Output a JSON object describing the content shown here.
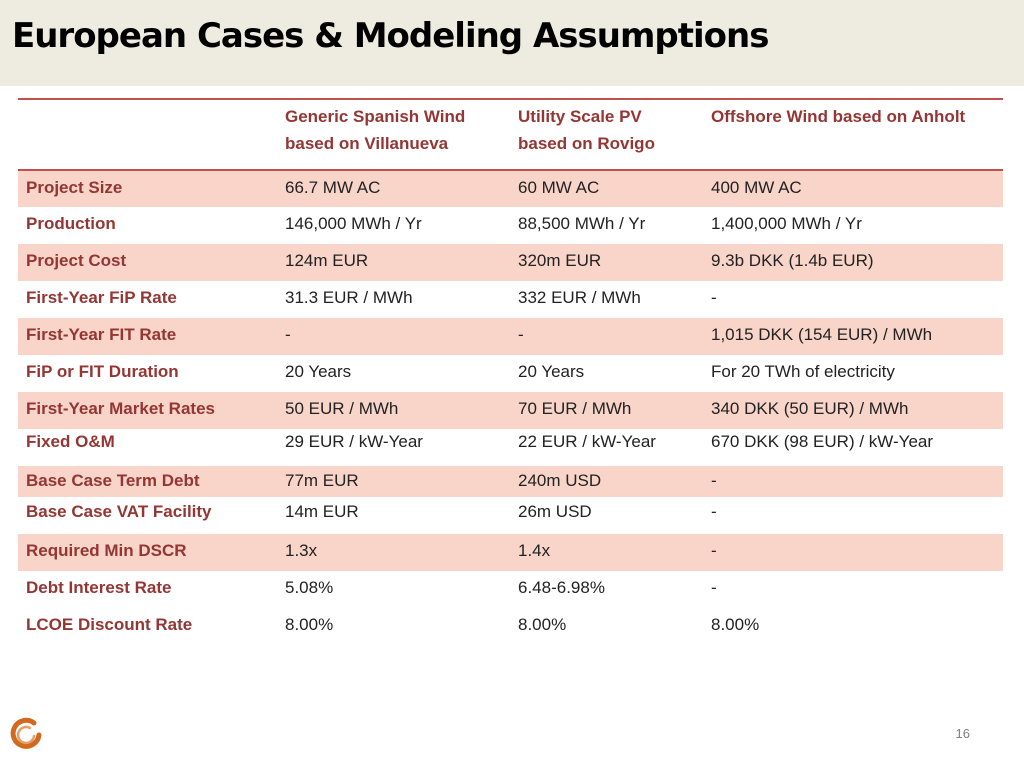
{
  "slide": {
    "title": "European Cases & Modeling Assumptions",
    "page_number": "16"
  },
  "table": {
    "headers": [
      "",
      "Generic Spanish Wind based on Villanueva",
      "Utility Scale PV based on Rovigo",
      "Offshore Wind based on Anholt"
    ],
    "rows": [
      {
        "label": "Project Size",
        "cells": [
          "66.7  MW AC",
          "60 MW AC",
          "400 MW AC"
        ]
      },
      {
        "label": "Production",
        "cells": [
          "146,000 MWh / Yr",
          "88,500 MWh / Yr",
          " 1,400,000 MWh / Yr"
        ]
      },
      {
        "label": "Project Cost",
        "cells": [
          "124m EUR",
          "320m EUR",
          "9.3b DKK (1.4b EUR)"
        ]
      },
      {
        "label": "First-Year FiP Rate",
        "cells": [
          "31.3 EUR / MWh",
          "332 EUR / MWh",
          "-"
        ]
      },
      {
        "label": "First-Year FIT Rate",
        "cells": [
          "-",
          "-",
          "1,015 DKK (154 EUR) / MWh"
        ]
      },
      {
        "label": "FiP or FIT Duration",
        "cells": [
          "20 Years",
          "20 Years",
          "For 20 TWh of electricity"
        ]
      },
      {
        "label": "First-Year Market Rates",
        "cells": [
          "50 EUR / MWh",
          "70 EUR / MWh",
          "340 DKK (50 EUR) / MWh"
        ]
      },
      {
        "label": "Fixed O&M",
        "cells": [
          "29 EUR / kW-Year",
          "22 EUR / kW-Year",
          "670 DKK (98 EUR) / kW-Year"
        ]
      },
      {
        "label": "Base Case Term Debt",
        "cells": [
          "77m EUR",
          "240m USD",
          "-"
        ]
      },
      {
        "label": "Base Case VAT Facility",
        "cells": [
          "14m  EUR",
          "26m USD",
          "-"
        ]
      },
      {
        "label": "Required Min DSCR",
        "cells": [
          "1.3x",
          "1.4x",
          "-"
        ]
      },
      {
        "label": "Debt Interest Rate",
        "cells": [
          "5.08%",
          "6.48-6.98%",
          "-"
        ]
      },
      {
        "label": "LCOE Discount Rate",
        "cells": [
          "8.00%",
          "8.00%",
          "8.00%"
        ]
      }
    ]
  },
  "colors": {
    "title_bar": "#eeece1",
    "header_text": "#943634",
    "rule": "#c0504d",
    "row_shade": "#f8d4c9",
    "logo": "#d2691e"
  },
  "icons": {
    "logo": "circular-arc-logo-icon"
  }
}
